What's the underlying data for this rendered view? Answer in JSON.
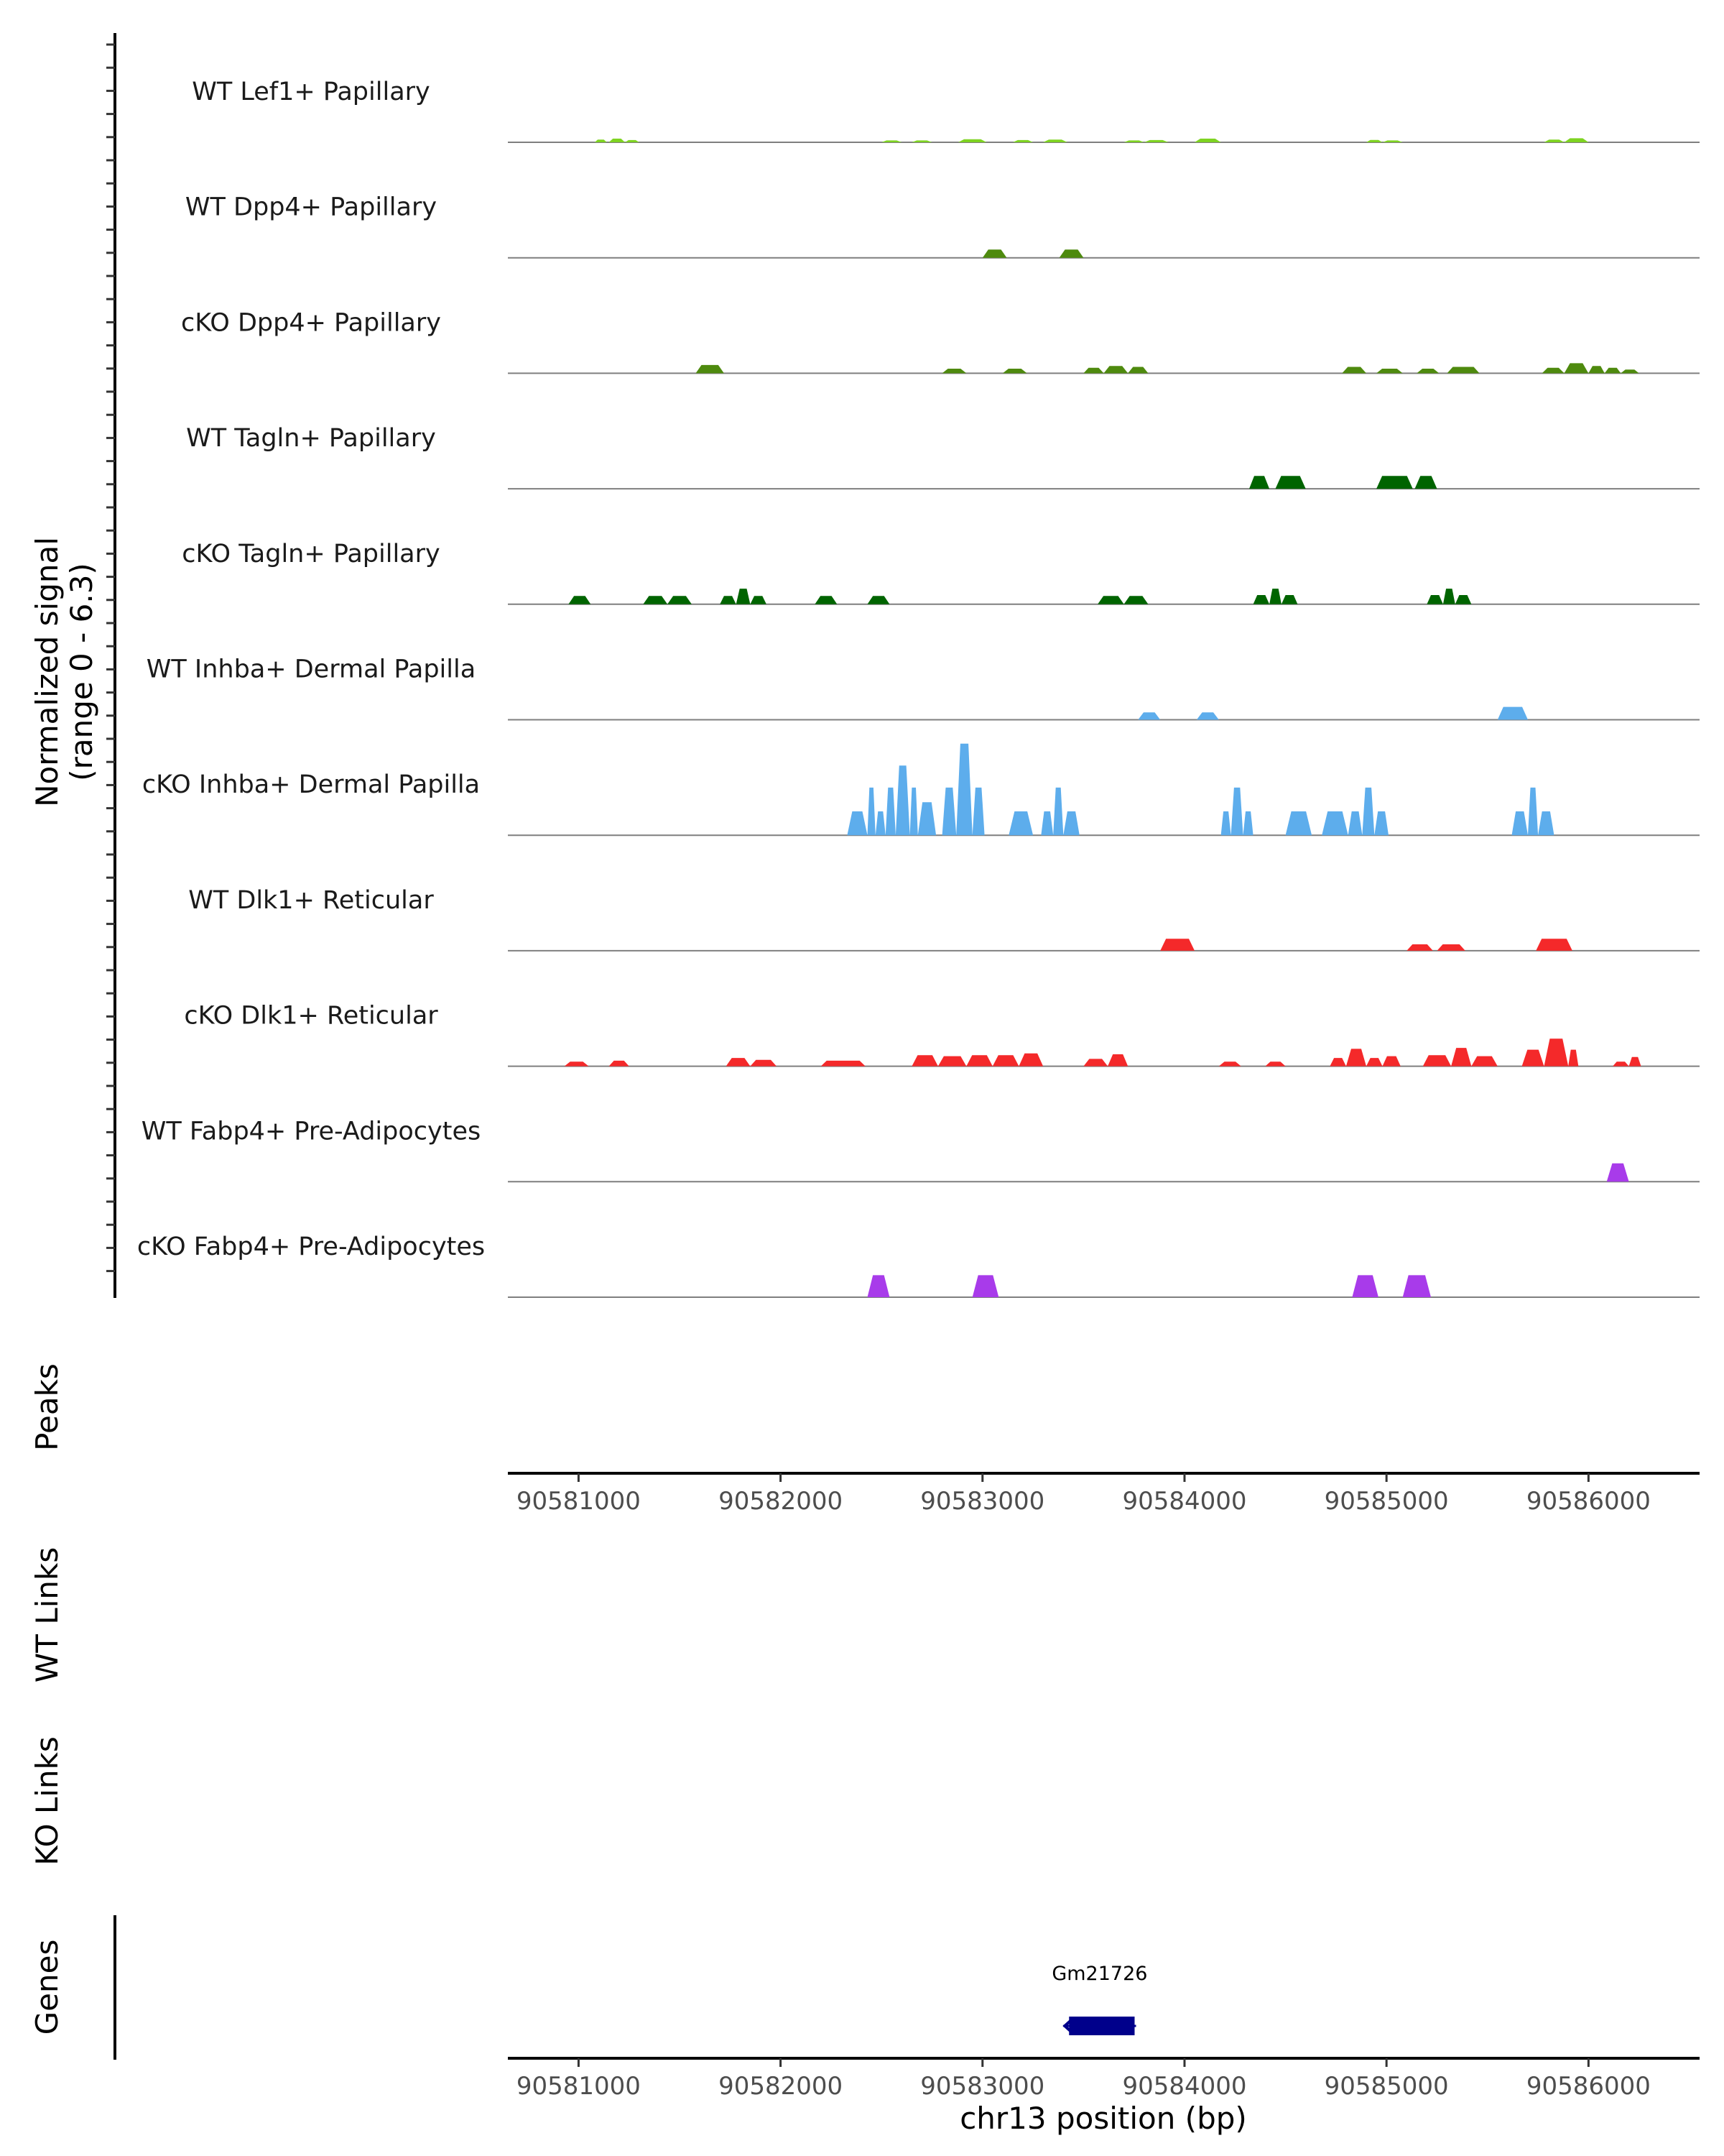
{
  "chart_data": {
    "type": "area",
    "title": "",
    "genomic_range": [
      90580650,
      90586550
    ],
    "signal_range": [
      0,
      6.3
    ],
    "ylabel_line1": "Normalized signal",
    "ylabel_line2": "(range 0 - 6.3)",
    "peaks_label": "Peaks",
    "wt_links_label": "WT Links",
    "ko_links_label": "KO Links",
    "genes_label": "Genes",
    "xlabel": "chr13 position (bp)",
    "xticks": [
      90581000,
      90582000,
      90583000,
      90584000,
      90585000,
      90586000
    ],
    "xtick_labels": [
      "90581000",
      "90582000",
      "90583000",
      "90584000",
      "90585000",
      "90586000"
    ],
    "tracks": [
      {
        "name": "WT Lef1+ Papillary",
        "color": "#7ED321",
        "peaks": [
          [
            90581080,
            90581140,
            0.15
          ],
          [
            90581150,
            90581230,
            0.2
          ],
          [
            90581230,
            90581300,
            0.12
          ],
          [
            90582500,
            90582600,
            0.1
          ],
          [
            90582650,
            90582750,
            0.1
          ],
          [
            90582880,
            90583020,
            0.17
          ],
          [
            90583150,
            90583250,
            0.12
          ],
          [
            90583300,
            90583420,
            0.15
          ],
          [
            90583700,
            90583800,
            0.1
          ],
          [
            90583800,
            90583920,
            0.12
          ],
          [
            90584050,
            90584180,
            0.2
          ],
          [
            90584900,
            90584980,
            0.13
          ],
          [
            90584980,
            90585080,
            0.1
          ],
          [
            90585780,
            90585880,
            0.15
          ],
          [
            90585880,
            90586000,
            0.22
          ]
        ]
      },
      {
        "name": "WT Dpp4+ Papillary",
        "color": "#4E8A0E",
        "peaks": [
          [
            90583000,
            90583120,
            0.45
          ],
          [
            90583380,
            90583500,
            0.45
          ]
        ]
      },
      {
        "name": "cKO Dpp4+ Papillary",
        "color": "#4E8A0E",
        "peaks": [
          [
            90581580,
            90581720,
            0.45
          ],
          [
            90582800,
            90582920,
            0.25
          ],
          [
            90583100,
            90583220,
            0.25
          ],
          [
            90583500,
            90583600,
            0.3
          ],
          [
            90583600,
            90583720,
            0.4
          ],
          [
            90583720,
            90583820,
            0.35
          ],
          [
            90584780,
            90584900,
            0.35
          ],
          [
            90584950,
            90585080,
            0.25
          ],
          [
            90585150,
            90585260,
            0.25
          ],
          [
            90585300,
            90585460,
            0.35
          ],
          [
            90585770,
            90585880,
            0.3
          ],
          [
            90585880,
            90586000,
            0.55
          ],
          [
            90586000,
            90586080,
            0.4
          ],
          [
            90586080,
            90586160,
            0.3
          ],
          [
            90586160,
            90586250,
            0.2
          ]
        ]
      },
      {
        "name": "WT Tagln+ Papillary",
        "color": "#006400",
        "peaks": [
          [
            90584320,
            90584420,
            0.7
          ],
          [
            90584450,
            90584600,
            0.7
          ],
          [
            90584950,
            90585130,
            0.7
          ],
          [
            90585140,
            90585250,
            0.7
          ]
        ]
      },
      {
        "name": "cKO Tagln+ Papillary",
        "color": "#006400",
        "peaks": [
          [
            90580950,
            90581060,
            0.45
          ],
          [
            90581320,
            90581440,
            0.45
          ],
          [
            90581440,
            90581560,
            0.45
          ],
          [
            90581700,
            90581780,
            0.45
          ],
          [
            90581780,
            90581850,
            0.85
          ],
          [
            90581850,
            90581930,
            0.45
          ],
          [
            90582170,
            90582280,
            0.45
          ],
          [
            90582430,
            90582540,
            0.45
          ],
          [
            90583570,
            90583700,
            0.45
          ],
          [
            90583700,
            90583820,
            0.45
          ],
          [
            90584340,
            90584420,
            0.5
          ],
          [
            90584420,
            90584480,
            0.85
          ],
          [
            90584480,
            90584560,
            0.5
          ],
          [
            90585200,
            90585280,
            0.5
          ],
          [
            90585280,
            90585340,
            0.85
          ],
          [
            90585340,
            90585420,
            0.5
          ]
        ]
      },
      {
        "name": "WT Inhba+ Dermal Papilla",
        "color": "#5DADEC",
        "peaks": [
          [
            90583770,
            90583880,
            0.4
          ],
          [
            90584060,
            90584170,
            0.4
          ],
          [
            90585550,
            90585700,
            0.7
          ]
        ]
      },
      {
        "name": "cKO Inhba+ Dermal Papilla",
        "color": "#5DADEC",
        "peaks": [
          [
            90582330,
            90582430,
            1.3
          ],
          [
            90582430,
            90582470,
            2.6
          ],
          [
            90582470,
            90582520,
            1.3
          ],
          [
            90582520,
            90582570,
            2.6
          ],
          [
            90582570,
            90582640,
            3.8
          ],
          [
            90582640,
            90582680,
            2.6
          ],
          [
            90582680,
            90582770,
            1.8
          ],
          [
            90582800,
            90582870,
            2.6
          ],
          [
            90582870,
            90582950,
            5.0
          ],
          [
            90582950,
            90583010,
            2.6
          ],
          [
            90583130,
            90583250,
            1.3
          ],
          [
            90583290,
            90583350,
            1.3
          ],
          [
            90583350,
            90583400,
            2.6
          ],
          [
            90583400,
            90583480,
            1.3
          ],
          [
            90584180,
            90584230,
            1.3
          ],
          [
            90584230,
            90584290,
            2.6
          ],
          [
            90584290,
            90584340,
            1.3
          ],
          [
            90584500,
            90584630,
            1.3
          ],
          [
            90584680,
            90584810,
            1.3
          ],
          [
            90584810,
            90584880,
            1.3
          ],
          [
            90584880,
            90584940,
            2.6
          ],
          [
            90584940,
            90585010,
            1.3
          ],
          [
            90585620,
            90585700,
            1.3
          ],
          [
            90585700,
            90585750,
            2.6
          ],
          [
            90585750,
            90585830,
            1.3
          ]
        ]
      },
      {
        "name": "WT Dlk1+ Reticular",
        "color": "#F4292A",
        "peaks": [
          [
            90583880,
            90584050,
            0.65
          ],
          [
            90585100,
            90585230,
            0.35
          ],
          [
            90585250,
            90585390,
            0.35
          ],
          [
            90585740,
            90585920,
            0.65
          ]
        ]
      },
      {
        "name": "cKO Dlk1+ Reticular",
        "color": "#F4292A",
        "peaks": [
          [
            90580930,
            90581050,
            0.25
          ],
          [
            90581150,
            90581250,
            0.3
          ],
          [
            90581730,
            90581850,
            0.45
          ],
          [
            90581850,
            90581980,
            0.35
          ],
          [
            90582200,
            90582420,
            0.3
          ],
          [
            90582650,
            90582780,
            0.6
          ],
          [
            90582780,
            90582920,
            0.55
          ],
          [
            90582920,
            90583050,
            0.6
          ],
          [
            90583050,
            90583180,
            0.6
          ],
          [
            90583180,
            90583300,
            0.7
          ],
          [
            90583500,
            90583620,
            0.4
          ],
          [
            90583620,
            90583720,
            0.65
          ],
          [
            90584170,
            90584280,
            0.25
          ],
          [
            90584400,
            90584500,
            0.25
          ],
          [
            90584720,
            90584800,
            0.45
          ],
          [
            90584800,
            90584900,
            0.95
          ],
          [
            90584900,
            90584980,
            0.45
          ],
          [
            90584980,
            90585070,
            0.55
          ],
          [
            90585180,
            90585320,
            0.6
          ],
          [
            90585320,
            90585420,
            1.0
          ],
          [
            90585420,
            90585550,
            0.55
          ],
          [
            90585670,
            90585780,
            0.9
          ],
          [
            90585780,
            90585900,
            1.5
          ],
          [
            90585900,
            90585950,
            0.9
          ],
          [
            90586120,
            90586200,
            0.25
          ],
          [
            90586200,
            90586260,
            0.5
          ]
        ]
      },
      {
        "name": "WT Fabp4+ Pre-Adipocytes",
        "color": "#A83BEA",
        "peaks": [
          [
            90586090,
            90586200,
            1.0
          ]
        ]
      },
      {
        "name": "cKO Fabp4+ Pre-Adipocytes",
        "color": "#A83BEA",
        "peaks": [
          [
            90582430,
            90582540,
            1.2
          ],
          [
            90582950,
            90583080,
            1.2
          ],
          [
            90584830,
            90584960,
            1.2
          ],
          [
            90585080,
            90585220,
            1.2
          ]
        ]
      }
    ],
    "gene": {
      "name": "Gm21726",
      "start": 90583400,
      "end": 90583760,
      "strand": "-",
      "color": "#00008B"
    }
  }
}
